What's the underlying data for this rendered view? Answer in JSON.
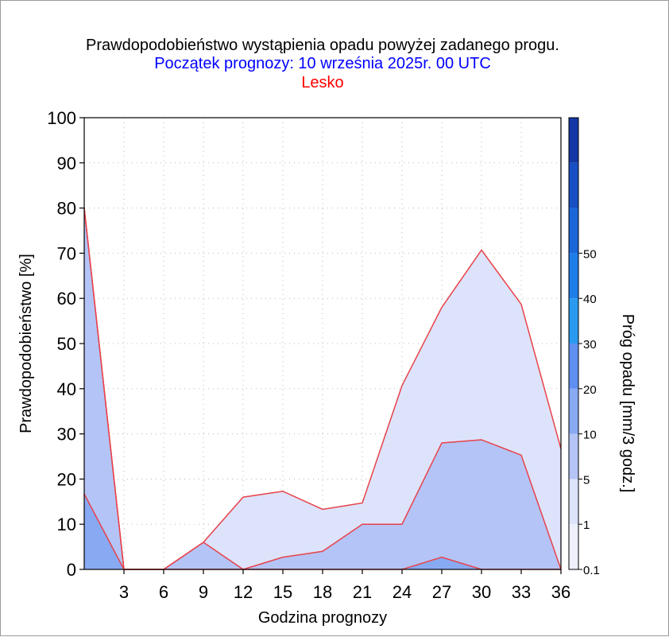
{
  "chart_data": {
    "type": "area",
    "title": "Prawdopodobieństwo wystąpienia opadu powyżej zadanego progu.",
    "subtitle": "Początek prognozy: 10 września 2025r. 00 UTC",
    "location": "Lesko",
    "xlabel": "Godzina prognozy",
    "ylabel": "Prawdopodobieństwo [%]",
    "colorbar_label": "Próg opadu [mm/3 godz.]",
    "xlim": [
      0,
      36
    ],
    "ylim": [
      0,
      100
    ],
    "x_ticks": [
      3,
      6,
      9,
      12,
      15,
      18,
      21,
      24,
      27,
      30,
      33,
      36
    ],
    "x_tick_labels": [
      "3",
      "6",
      "9",
      "12",
      "15",
      "18",
      "21",
      "24",
      "27",
      "30",
      "33",
      "36"
    ],
    "y_ticks": [
      0,
      10,
      20,
      30,
      40,
      50,
      60,
      70,
      80,
      90,
      100
    ],
    "y_tick_labels": [
      "0",
      "10",
      "20",
      "30",
      "40",
      "50",
      "60",
      "70",
      "80",
      "90",
      "100"
    ],
    "grid": true,
    "x": [
      0,
      3,
      6,
      9,
      12,
      15,
      18,
      21,
      24,
      27,
      30,
      33,
      36
    ],
    "series": [
      {
        "threshold": 0.1,
        "color": "#dde3fa",
        "values": [
          80,
          0,
          0,
          6,
          16,
          17.3,
          13.3,
          14.7,
          40.7,
          58,
          70.7,
          58.7,
          26.7
        ]
      },
      {
        "threshold": 1,
        "color": "#b4c4f6",
        "values": [
          80,
          0,
          0,
          6,
          0,
          2.7,
          4,
          10,
          10,
          28,
          28.7,
          25.3,
          0
        ]
      },
      {
        "threshold": 5,
        "color": "#88aaf3",
        "values": [
          16.7,
          0,
          0,
          0,
          0,
          0,
          0,
          0,
          0,
          2.7,
          0,
          0,
          0
        ]
      }
    ],
    "colorbar": {
      "levels": [
        "0.1",
        "1",
        "5",
        "10",
        "20",
        "30",
        "40",
        "50"
      ],
      "colors": [
        "#eef0fb",
        "#dde3fa",
        "#b4c4f6",
        "#88aaf3",
        "#5f8ff0",
        "#2a9af0",
        "#1f7de8",
        "#1a66d8",
        "#174fc4",
        "#1338a6"
      ]
    },
    "line_color": "#e8424a"
  }
}
